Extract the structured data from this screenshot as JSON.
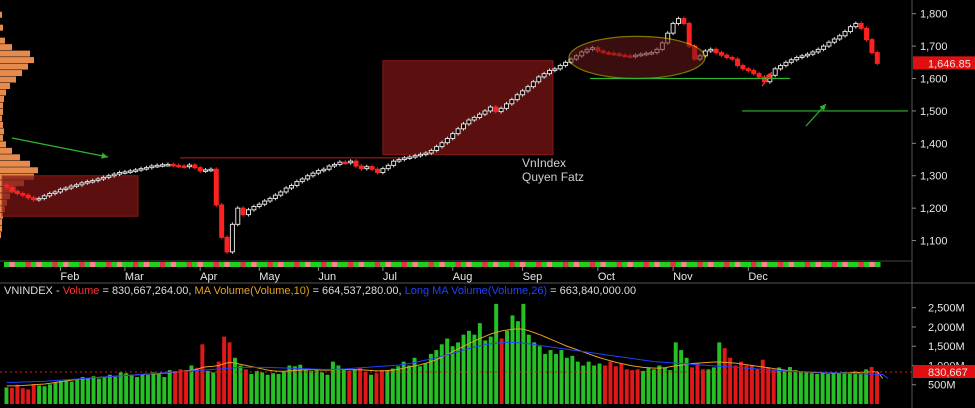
{
  "chart_data": [
    {
      "type": "candlestick",
      "title": "",
      "annotation_lines": [
        "VnIndex",
        "Quyen Fatz"
      ],
      "months": [
        "Feb",
        "Mar",
        "Apr",
        "May",
        "Jun",
        "Jul",
        "Aug",
        "Sep",
        "Oct",
        "Nov",
        "Dec"
      ],
      "y_ticks": [
        1100,
        1200,
        1300,
        1400,
        1500,
        1600,
        1700,
        1800
      ],
      "ylim": [
        1040,
        1830
      ],
      "last_value_label": "1,646.85",
      "last_value": 1646.85,
      "close_series": [
        1265,
        1252,
        1245,
        1240,
        1232,
        1226,
        1230,
        1238,
        1245,
        1250,
        1258,
        1262,
        1268,
        1272,
        1278,
        1282,
        1285,
        1290,
        1295,
        1300,
        1305,
        1310,
        1312,
        1315,
        1318,
        1322,
        1325,
        1330,
        1332,
        1334,
        1335,
        1332,
        1330,
        1328,
        1333,
        1325,
        1315,
        1318,
        1320,
        1210,
        1110,
        1065,
        1150,
        1200,
        1180,
        1195,
        1205,
        1212,
        1222,
        1230,
        1240,
        1250,
        1262,
        1270,
        1282,
        1290,
        1300,
        1308,
        1316,
        1320,
        1330,
        1335,
        1342,
        1340,
        1345,
        1330,
        1322,
        1328,
        1320,
        1310,
        1322,
        1332,
        1345,
        1350,
        1355,
        1358,
        1362,
        1366,
        1370,
        1378,
        1390,
        1402,
        1415,
        1430,
        1445,
        1460,
        1472,
        1480,
        1490,
        1500,
        1512,
        1498,
        1508,
        1522,
        1535,
        1550,
        1562,
        1575,
        1590,
        1605,
        1615,
        1625,
        1630,
        1640,
        1650,
        1660,
        1670,
        1682,
        1690,
        1695,
        1685,
        1680,
        1678,
        1676,
        1672,
        1670,
        1668,
        1672,
        1675,
        1678,
        1680,
        1690,
        1710,
        1740,
        1770,
        1785,
        1770,
        1700,
        1660,
        1670,
        1685,
        1690,
        1680,
        1672,
        1665,
        1660,
        1640,
        1630,
        1625,
        1615,
        1605,
        1590,
        1610,
        1630,
        1640,
        1650,
        1658,
        1665,
        1670,
        1675,
        1682,
        1690,
        1700,
        1712,
        1722,
        1732,
        1745,
        1760,
        1770,
        1755,
        1720,
        1680,
        1646.85
      ],
      "overlays": {
        "ellipse_range": [
          1600,
          1730
        ],
        "horizontal_levels": [
          1600,
          1500
        ],
        "red_zones": [
          {
            "from_month": "Jan",
            "to_month": "Feb",
            "low": 1175,
            "high": 1300
          },
          {
            "from_month": "Jul",
            "to_month": "Aug",
            "low": 1365,
            "high": 1655
          }
        ]
      }
    },
    {
      "type": "bar",
      "series_label": "VNINDEX",
      "legend": {
        "volume_label": "Volume",
        "volume_value": "830,667,264.00",
        "ma_label": "MA Volume(Volume,10)",
        "ma_value": "664,537,280.00",
        "long_ma_label": "Long MA Volume(Volume,26)",
        "long_ma_value": "663,840,000.00"
      },
      "y_ticks": [
        "500M",
        "1,000M",
        "1,500M",
        "2,000M",
        "2,500M"
      ],
      "y_tick_values": [
        500,
        1000,
        1500,
        2000,
        2500
      ],
      "ylim": [
        0,
        2700
      ],
      "last_value_label": "830,667",
      "values_millions": [
        430,
        420,
        500,
        410,
        380,
        520,
        480,
        460,
        510,
        560,
        600,
        620,
        580,
        640,
        700,
        680,
        720,
        660,
        700,
        760,
        700,
        820,
        800,
        760,
        700,
        780,
        760,
        820,
        780,
        700,
        880,
        860,
        900,
        880,
        1000,
        940,
        1550,
        860,
        820,
        1100,
        1750,
        1600,
        1200,
        1000,
        900,
        780,
        860,
        820,
        760,
        800,
        780,
        840,
        1000,
        980,
        1020,
        900,
        860,
        880,
        820,
        760,
        1100,
        1000,
        920,
        860,
        900,
        940,
        840,
        760,
        800,
        880,
        860,
        920,
        980,
        1100,
        1000,
        1200,
        980,
        1060,
        1300,
        1400,
        1550,
        1700,
        1500,
        1600,
        1800,
        1900,
        1800,
        2100,
        1650,
        1750,
        2600,
        1700,
        1900,
        2300,
        2150,
        2600,
        1800,
        1600,
        1500,
        1300,
        1400,
        1300,
        1400,
        1200,
        1250,
        1100,
        1000,
        1100,
        1000,
        1050,
        1000,
        1100,
        980,
        1050,
        900,
        880,
        900,
        860,
        940,
        900,
        1000,
        950,
        880,
        1600,
        1400,
        1200,
        950,
        1050,
        900,
        900,
        950,
        1600,
        1450,
        1200,
        1000,
        1100,
        1000,
        1000,
        900,
        1150,
        950,
        900,
        950,
        880,
        960,
        880,
        840,
        820,
        800,
        780,
        800,
        780,
        820,
        800,
        830,
        820,
        850,
        800,
        900,
        960,
        830.667
      ],
      "ma10_values_millions": [
        470,
        470,
        475,
        480,
        490,
        500,
        510,
        520,
        540,
        560,
        580,
        600,
        620,
        640,
        650,
        660,
        680,
        690,
        700,
        710,
        720,
        730,
        740,
        750,
        760,
        770,
        780,
        780,
        790,
        800,
        810,
        820,
        840,
        860,
        880,
        900,
        950,
        970,
        980,
        1000,
        1050,
        1080,
        1060,
        1030,
        1000,
        970,
        940,
        910,
        880,
        860,
        850,
        850,
        860,
        870,
        880,
        890,
        890,
        890,
        880,
        880,
        890,
        900,
        900,
        890,
        890,
        890,
        880,
        870,
        860,
        860,
        870,
        880,
        900,
        930,
        960,
        990,
        1020,
        1060,
        1100,
        1150,
        1220,
        1290,
        1360,
        1430,
        1500,
        1570,
        1640,
        1700,
        1760,
        1820,
        1860,
        1900,
        1920,
        1940,
        1950,
        1940,
        1900,
        1850,
        1800,
        1740,
        1680,
        1620,
        1560,
        1500,
        1450,
        1400,
        1350,
        1300,
        1250,
        1200,
        1160,
        1120,
        1080,
        1050,
        1020,
        990,
        970,
        950,
        940,
        930,
        930,
        940,
        970,
        990,
        1010,
        1030,
        1050,
        1060,
        1070,
        1080,
        1090,
        1090,
        1080,
        1070,
        1060,
        1040,
        1020,
        1000,
        980,
        960,
        940,
        920,
        900,
        880,
        860,
        850,
        840,
        830,
        820,
        815,
        810,
        805,
        800,
        800,
        805,
        810,
        815,
        820,
        830,
        835,
        840,
        664.537
      ],
      "long_ma_values_millions": [
        560,
        560,
        565,
        570,
        575,
        580,
        585,
        590,
        600,
        610,
        620,
        630,
        640,
        650,
        660,
        670,
        680,
        690,
        700,
        710,
        720,
        730,
        740,
        750,
        760,
        770,
        780,
        790,
        800,
        810,
        820,
        830,
        840,
        850,
        860,
        870,
        880,
        890,
        900,
        910,
        920,
        930,
        940,
        945,
        950,
        950,
        950,
        950,
        950,
        945,
        940,
        935,
        930,
        925,
        920,
        915,
        910,
        905,
        900,
        900,
        900,
        905,
        910,
        920,
        930,
        940,
        950,
        960,
        970,
        980,
        990,
        1000,
        1010,
        1030,
        1050,
        1080,
        1110,
        1140,
        1170,
        1200,
        1240,
        1280,
        1320,
        1360,
        1400,
        1440,
        1480,
        1510,
        1540,
        1560,
        1580,
        1590,
        1600,
        1600,
        1590,
        1580,
        1560,
        1540,
        1520,
        1500,
        1480,
        1460,
        1440,
        1420,
        1400,
        1380,
        1360,
        1340,
        1320,
        1300,
        1280,
        1260,
        1240,
        1220,
        1200,
        1180,
        1160,
        1140,
        1120,
        1100,
        1090,
        1080,
        1070,
        1060,
        1050,
        1040,
        1030,
        1020,
        1010,
        1000,
        990,
        980,
        970,
        960,
        950,
        940,
        930,
        920,
        910,
        900,
        890,
        880,
        870,
        860,
        850,
        845,
        840,
        835,
        830,
        825,
        820,
        815,
        810,
        805,
        800,
        795,
        790,
        785,
        780,
        775,
        770,
        765,
        663.84
      ]
    }
  ]
}
